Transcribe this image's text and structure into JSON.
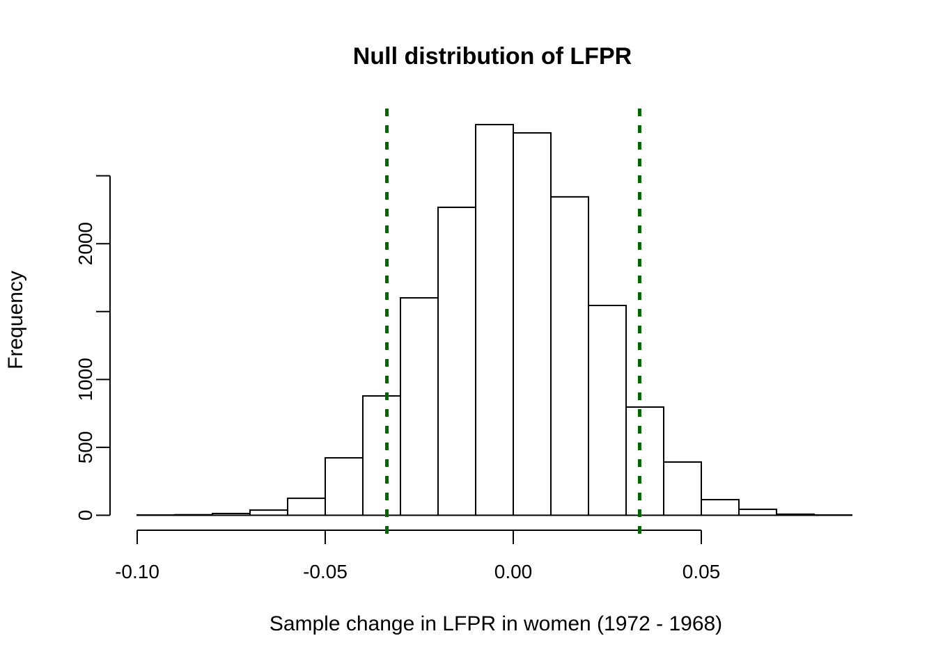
{
  "chart_data": {
    "type": "bar",
    "subtype": "histogram",
    "title": "Null distribution of LFPR",
    "xlabel": "Sample change in LFPR in women (1972 - 1968)",
    "ylabel": "Frequency",
    "bin_start": -0.1,
    "bin_width": 0.01,
    "frequencies": [
      2,
      4,
      13,
      38,
      125,
      423,
      879,
      1601,
      2268,
      2877,
      2816,
      2345,
      1545,
      797,
      392,
      115,
      44,
      8,
      2
    ],
    "x_ticks": [
      {
        "value": -0.1,
        "label": "-0.10"
      },
      {
        "value": -0.05,
        "label": "-0.05"
      },
      {
        "value": 0.0,
        "label": "0.00"
      },
      {
        "value": 0.05,
        "label": "0.05"
      }
    ],
    "y_ticks": [
      {
        "value": 0,
        "label": "0"
      },
      {
        "value": 500,
        "label": "500"
      },
      {
        "value": 1000,
        "label": "1000"
      },
      {
        "value": 1500,
        "label": ""
      },
      {
        "value": 2000,
        "label": "2000"
      },
      {
        "value": 2500,
        "label": ""
      }
    ],
    "xlim": [
      -0.1,
      0.05
    ],
    "ylim": [
      0,
      2500
    ],
    "grid": false,
    "legend": "none",
    "bar_fill": "#ffffff",
    "bar_stroke": "#000000",
    "cutoff_lines": {
      "values": [
        -0.0336,
        0.0336
      ],
      "color": "#006400",
      "style": "dashed"
    }
  }
}
